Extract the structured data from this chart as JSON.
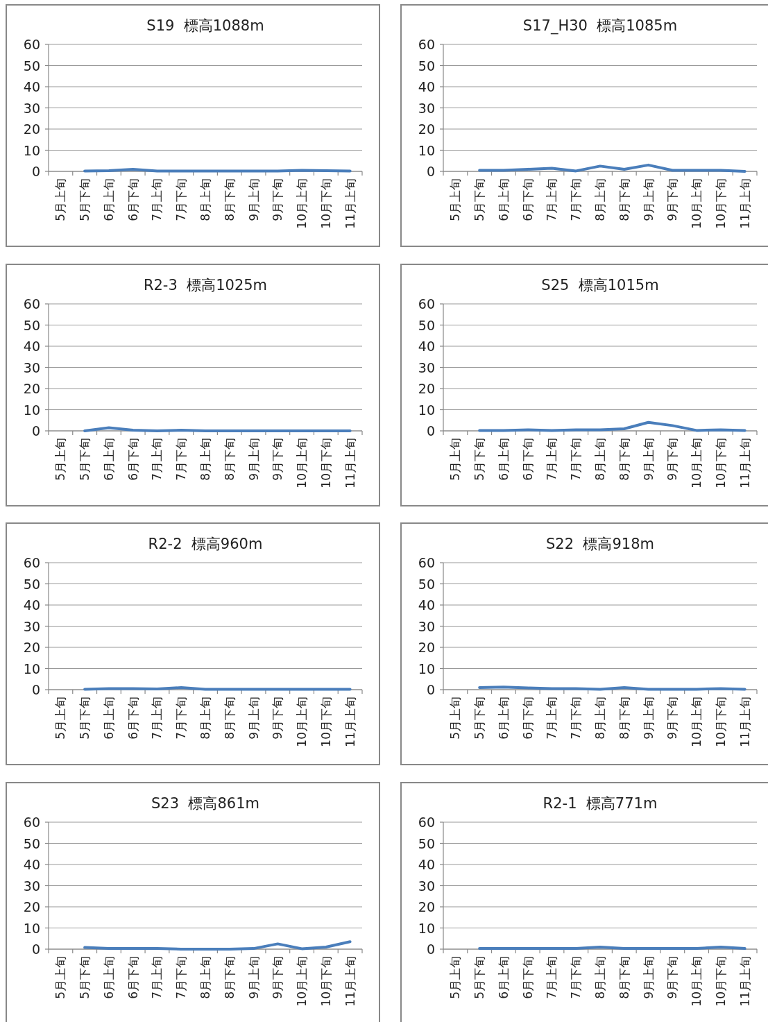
{
  "chart_data": [
    {
      "type": "line",
      "title": "S19  標高1088m",
      "categories": [
        "5月上旬",
        "5月下旬",
        "6月上旬",
        "6月下旬",
        "7月上旬",
        "7月下旬",
        "8月上旬",
        "8月下旬",
        "9月上旬",
        "9月下旬",
        "10月上旬",
        "10月下旬",
        "11月上旬"
      ],
      "series": [
        {
          "color": "#4a7ebb",
          "values": [
            null,
            0.2,
            0.3,
            1,
            0.2,
            0.2,
            0.2,
            0.2,
            0.2,
            0.2,
            0.5,
            0.3,
            0.2
          ]
        }
      ],
      "ylim": [
        0,
        60
      ],
      "yticks": [
        0,
        10,
        20,
        30,
        40,
        50,
        60
      ],
      "grid": "y"
    },
    {
      "type": "line",
      "title": "S17_H30  標高1085m",
      "categories": [
        "5月上旬",
        "5月下旬",
        "6月上旬",
        "6月下旬",
        "7月上旬",
        "7月下旬",
        "8月上旬",
        "8月下旬",
        "9月上旬",
        "9月下旬",
        "10月上旬",
        "10月下旬",
        "11月上旬"
      ],
      "series": [
        {
          "color": "#4a7ebb",
          "values": [
            null,
            0.5,
            0.5,
            1,
            1.5,
            0.2,
            2.5,
            1,
            3,
            0.5,
            0.5,
            0.5,
            0
          ]
        }
      ],
      "ylim": [
        0,
        60
      ],
      "yticks": [
        0,
        10,
        20,
        30,
        40,
        50,
        60
      ],
      "grid": "y"
    },
    {
      "type": "line",
      "title": "R2-3  標高1025m",
      "categories": [
        "5月上旬",
        "5月下旬",
        "6月上旬",
        "6月下旬",
        "7月上旬",
        "7月下旬",
        "8月上旬",
        "8月下旬",
        "9月上旬",
        "9月下旬",
        "10月上旬",
        "10月下旬",
        "11月上旬"
      ],
      "series": [
        {
          "color": "#4a7ebb",
          "values": [
            null,
            0,
            1.5,
            0.3,
            0,
            0.3,
            0,
            0,
            0,
            0,
            0,
            0,
            0
          ]
        }
      ],
      "ylim": [
        0,
        60
      ],
      "yticks": [
        0,
        10,
        20,
        30,
        40,
        50,
        60
      ],
      "grid": "y"
    },
    {
      "type": "line",
      "title": "S25  標高1015m",
      "categories": [
        "5月上旬",
        "5月下旬",
        "6月上旬",
        "6月下旬",
        "7月上旬",
        "7月下旬",
        "8月上旬",
        "8月下旬",
        "9月上旬",
        "9月下旬",
        "10月上旬",
        "10月下旬",
        "11月上旬"
      ],
      "series": [
        {
          "color": "#4a7ebb",
          "values": [
            null,
            0.2,
            0.2,
            0.5,
            0.2,
            0.5,
            0.5,
            1,
            4,
            2.5,
            0.2,
            0.5,
            0.2
          ]
        }
      ],
      "ylim": [
        0,
        60
      ],
      "yticks": [
        0,
        10,
        20,
        30,
        40,
        50,
        60
      ],
      "grid": "y"
    },
    {
      "type": "line",
      "title": "R2-2  標高960m",
      "categories": [
        "5月上旬",
        "5月下旬",
        "6月上旬",
        "6月下旬",
        "7月上旬",
        "7月下旬",
        "8月上旬",
        "8月下旬",
        "9月上旬",
        "9月下旬",
        "10月上旬",
        "10月下旬",
        "11月上旬"
      ],
      "series": [
        {
          "color": "#4a7ebb",
          "values": [
            null,
            0.2,
            0.5,
            0.5,
            0.3,
            1,
            0.2,
            0.2,
            0.2,
            0.2,
            0.2,
            0.2,
            0.2
          ]
        }
      ],
      "ylim": [
        0,
        60
      ],
      "yticks": [
        0,
        10,
        20,
        30,
        40,
        50,
        60
      ],
      "grid": "y"
    },
    {
      "type": "line",
      "title": "S22  標高918m",
      "categories": [
        "5月上旬",
        "5月下旬",
        "6月上旬",
        "6月下旬",
        "7月上旬",
        "7月下旬",
        "8月上旬",
        "8月下旬",
        "9月上旬",
        "9月下旬",
        "10月上旬",
        "10月下旬",
        "11月上旬"
      ],
      "series": [
        {
          "color": "#4a7ebb",
          "values": [
            null,
            1,
            1.2,
            0.8,
            0.5,
            0.5,
            0.2,
            1,
            0.2,
            0.2,
            0.2,
            0.5,
            0.2
          ]
        }
      ],
      "ylim": [
        0,
        60
      ],
      "yticks": [
        0,
        10,
        20,
        30,
        40,
        50,
        60
      ],
      "grid": "y"
    },
    {
      "type": "line",
      "title": "S23  標高861m",
      "categories": [
        "5月上旬",
        "5月下旬",
        "6月上旬",
        "6月下旬",
        "7月上旬",
        "7月下旬",
        "8月上旬",
        "8月下旬",
        "9月上旬",
        "9月下旬",
        "10月上旬",
        "10月下旬",
        "11月上旬"
      ],
      "series": [
        {
          "color": "#4a7ebb",
          "values": [
            null,
            0.8,
            0.3,
            0.3,
            0.3,
            0,
            0,
            0,
            0.3,
            2.5,
            0.2,
            1,
            3.5
          ]
        }
      ],
      "ylim": [
        0,
        60
      ],
      "yticks": [
        0,
        10,
        20,
        30,
        40,
        50,
        60
      ],
      "grid": "y"
    },
    {
      "type": "line",
      "title": "R2-1  標高771m",
      "categories": [
        "5月上旬",
        "5月下旬",
        "6月上旬",
        "6月下旬",
        "7月上旬",
        "7月下旬",
        "8月上旬",
        "8月下旬",
        "9月上旬",
        "9月下旬",
        "10月上旬",
        "10月下旬",
        "11月上旬"
      ],
      "series": [
        {
          "color": "#4a7ebb",
          "values": [
            null,
            0.3,
            0.3,
            0.3,
            0.3,
            0.3,
            1,
            0.3,
            0.3,
            0.3,
            0.3,
            1,
            0.3
          ]
        }
      ],
      "ylim": [
        0,
        60
      ],
      "yticks": [
        0,
        10,
        20,
        30,
        40,
        50,
        60
      ],
      "grid": "y"
    }
  ]
}
